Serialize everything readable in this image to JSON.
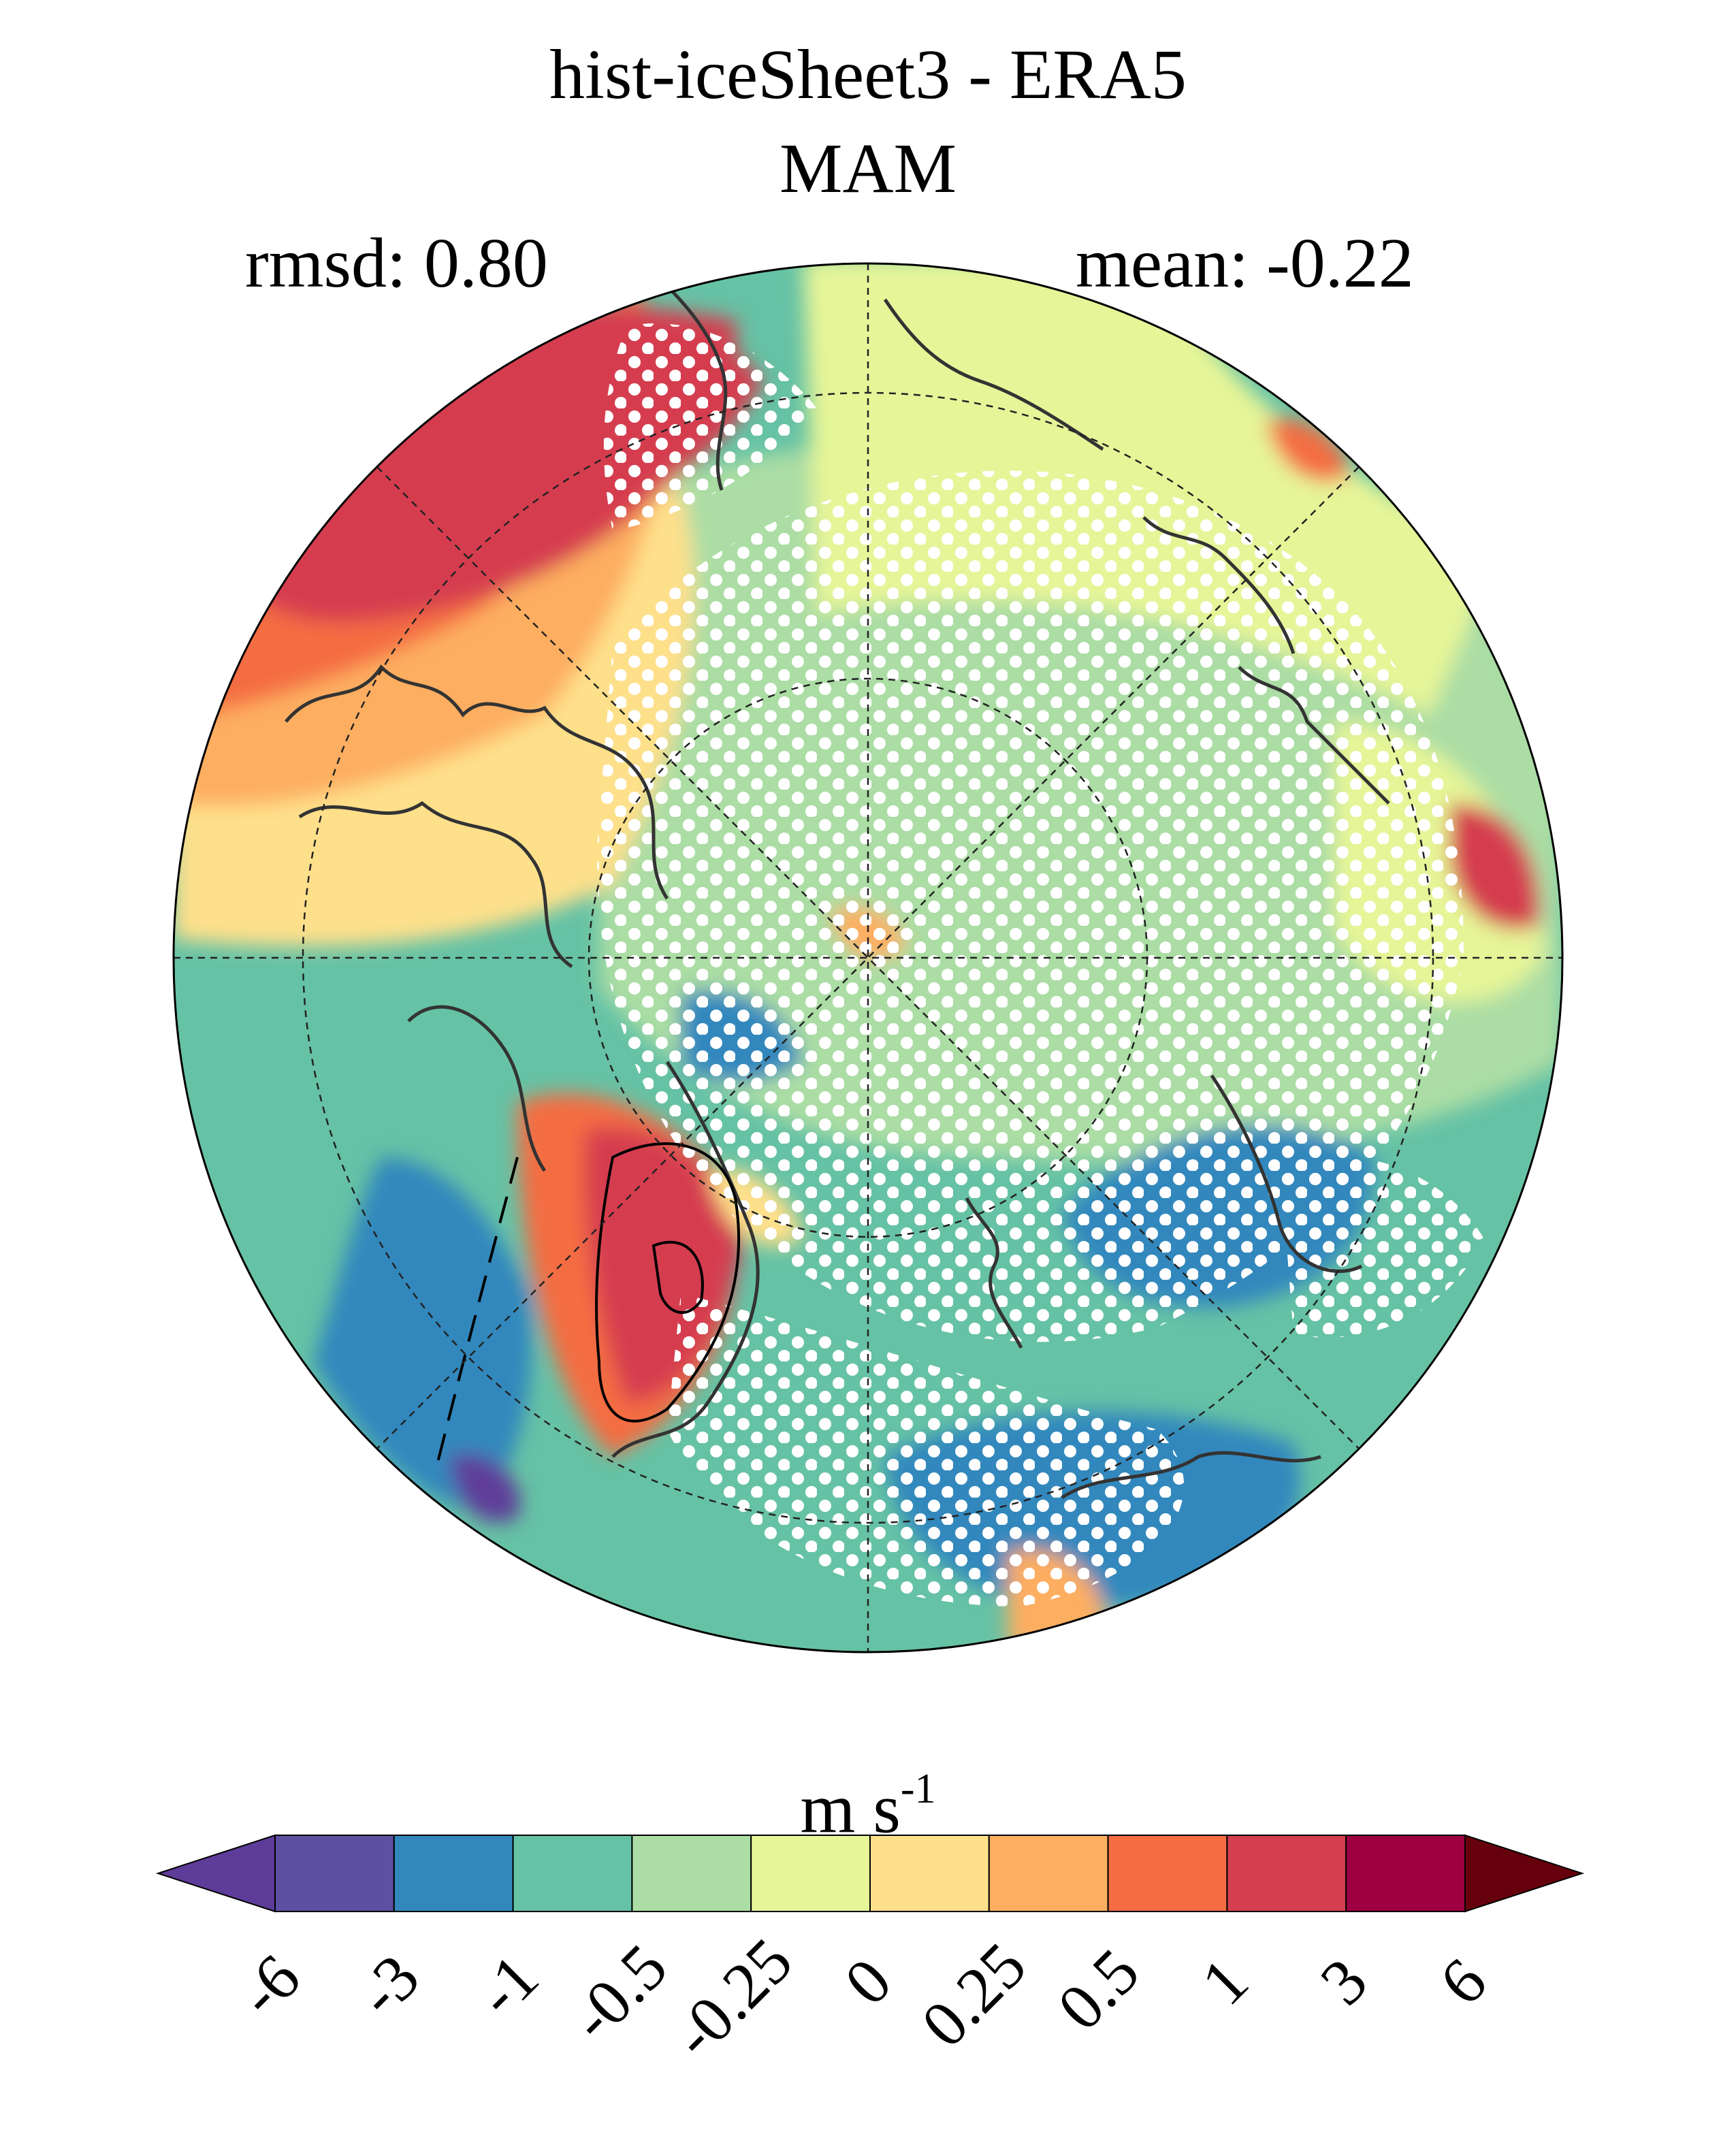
{
  "title": {
    "line1": "hist-iceSheet3 - ERA5",
    "line2": "MAM"
  },
  "stats": {
    "rmsd": "rmsd: 0.80",
    "mean": "mean: -0.22"
  },
  "map": {
    "projection": "north polar stereographic",
    "graticule": "dashed",
    "stippling": "white dots"
  },
  "colorbar": {
    "units": {
      "base": "m s",
      "exponent": "-1"
    },
    "ticks": [
      "-6",
      "-3",
      "-1",
      "-0.5",
      "-0.25",
      "0",
      "0.25",
      "0.5",
      "1",
      "3",
      "6"
    ],
    "colors": [
      "#5e3c99",
      "#5d4fa2",
      "#3288bd",
      "#66c2a5",
      "#abdda4",
      "#e6f598",
      "#fee08b",
      "#fdae61",
      "#f46d43",
      "#d53e4f",
      "#9e0142",
      "#67000d"
    ]
  }
}
